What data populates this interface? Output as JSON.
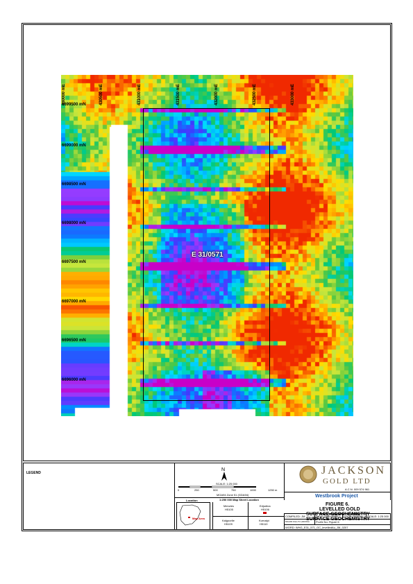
{
  "map": {
    "easting_labels": [
      "430000 mE",
      "430500 mE",
      "431000 mE",
      "431500 mE",
      "432000 mE",
      "432500 mE",
      "433000 mE"
    ],
    "northing_labels": [
      "6699500 mN",
      "6699000 mN",
      "6698500 mN",
      "6698000 mN",
      "6697500 mN",
      "6697000 mN",
      "6696500 mN",
      "6696000 mN"
    ],
    "tenement_label": "E 31/0571"
  },
  "legend": {
    "title": "LEGEND"
  },
  "scale": {
    "ratio": "SCALE: 1:25 000",
    "ticks": [
      "0",
      "250",
      "500",
      "750",
      "1000",
      "1250 m"
    ],
    "projection": "MGA94 Zone 51 (GDA94)",
    "sheet_title": "1:250 000 Map Sheet Location"
  },
  "location": {
    "title": "Location",
    "map_area_label": "Map Area",
    "sheets": [
      {
        "name": "Menzies",
        "code": "H5105"
      },
      {
        "name": "Edjudina",
        "code": "H5106"
      },
      {
        "name": "Kalgoorlie",
        "code": "H5109"
      },
      {
        "name": "Kurnalpi",
        "code": "H5110"
      }
    ]
  },
  "company": {
    "name_line1": "JACKSON",
    "name_line2": "GOLD LTD",
    "acn": "A.C.N. 009 574 961",
    "project": "Westbrook Project"
  },
  "figure": {
    "number": "FIGURE 6.",
    "line1": "LEVELLED GOLD",
    "line2": "SURFACE GEOCHEMISTRY"
  },
  "meta": {
    "compiled": "COMPILED: JM",
    "date": "DATE: 20/02/2007",
    "location": "LOCN: PERTH",
    "scale": "SCALE: 1:25 000",
    "datum": "MGA94 Zone 51 (GDA94)",
    "plan": "PLAN No: Figure 6",
    "word": "WORD: WHG_E31_571_GC_levelledAu_JM_0207"
  },
  "colors": {
    "accent": "#1e5aa8",
    "brand": "#6a5a3a"
  }
}
